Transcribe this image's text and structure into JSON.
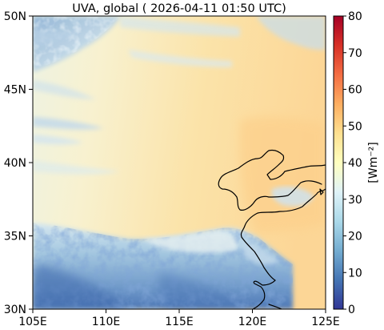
{
  "map": {
    "title": "UVA, global ( 2026-04-11 01:50 UTC)",
    "x_ticks": [
      "105E",
      "110E",
      "115E",
      "120E",
      "125E"
    ],
    "y_ticks": [
      "30N",
      "35N",
      "40N",
      "45N",
      "50N"
    ],
    "extent": {
      "lon": [
        105,
        125
      ],
      "lat": [
        30,
        50
      ]
    }
  },
  "colorbar": {
    "label": "[Wm⁻²]",
    "ticks": [
      "0",
      "10",
      "20",
      "30",
      "40",
      "50",
      "60",
      "70",
      "80"
    ],
    "range": [
      0,
      80
    ],
    "colormap": "RdYlBu_r",
    "colors": [
      "#313695",
      "#4575b4",
      "#74add1",
      "#abd9e9",
      "#e0f3f8",
      "#ffffbf",
      "#fee090",
      "#fdae61",
      "#f46d43",
      "#d73027",
      "#a50026"
    ]
  },
  "field_colors": {
    "north_cloud": "#c6dbea",
    "plain_north": "#f6f0cf",
    "plain_central": "#fbe6ae",
    "plain_east": "#fcd594",
    "south_cloud_light": "#cfe3ee",
    "south_cloud": "#7fa9d1",
    "south_cloud_dark": "#3a64a8",
    "coastline": "#000000"
  }
}
